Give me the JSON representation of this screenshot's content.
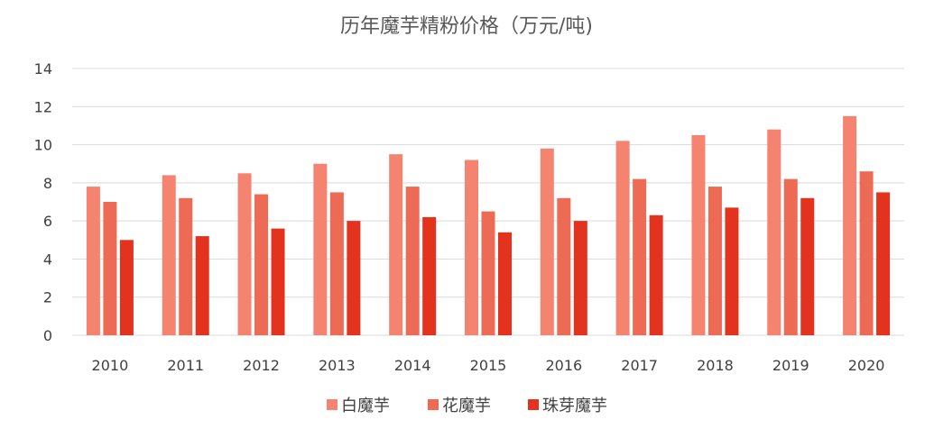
{
  "chart_data": {
    "type": "bar",
    "title": "历年魔芋精粉价格（万元/吨)",
    "xlabel": "",
    "ylabel": "",
    "ylim": [
      0,
      14
    ],
    "yticks": [
      0,
      2,
      4,
      6,
      8,
      10,
      12,
      14
    ],
    "grid": true,
    "legend_position": "bottom",
    "categories": [
      "2010",
      "2011",
      "2012",
      "2013",
      "2014",
      "2015",
      "2016",
      "2017",
      "2018",
      "2019",
      "2020"
    ],
    "series": [
      {
        "name": "白魔芋",
        "color": "#f4836f",
        "values": [
          7.8,
          8.4,
          8.5,
          9.0,
          9.5,
          9.2,
          9.8,
          10.2,
          10.5,
          10.8,
          11.5
        ]
      },
      {
        "name": "花魔芋",
        "color": "#ed6a55",
        "values": [
          7.0,
          7.2,
          7.4,
          7.5,
          7.8,
          6.5,
          7.2,
          8.2,
          7.8,
          8.2,
          8.6
        ]
      },
      {
        "name": "珠芽魔芋",
        "color": "#e3331e",
        "values": [
          5.0,
          5.2,
          5.6,
          6.0,
          6.2,
          5.4,
          6.0,
          6.3,
          6.7,
          7.2,
          7.5
        ]
      }
    ]
  }
}
